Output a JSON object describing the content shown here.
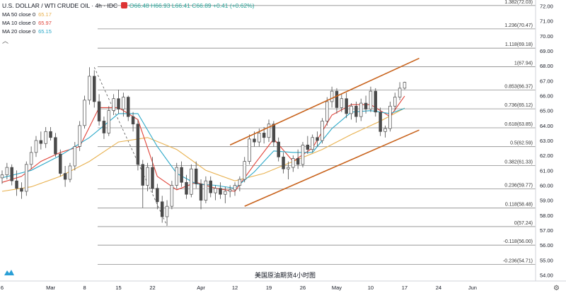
{
  "header": {
    "symbol": "U.S. DOLLAR / WTI CRUDE OIL · 4h · IDC",
    "ohlc": "O66.48 H66.93 L66.41 C66.89 +0.41 (+0.62%)",
    "ohlc_color": "#26a69a"
  },
  "indicators": [
    {
      "label": "MA 50 close 0",
      "value": "65.17",
      "color": "#e8b04d"
    },
    {
      "label": "MA 10 close 0",
      "value": "65.97",
      "color": "#e0443a"
    },
    {
      "label": "MA 20 close 0",
      "value": "65.15",
      "color": "#2aa8c8"
    }
  ],
  "caption": "美国原油期货4小时图",
  "icons": {
    "collapse": "chevron-up-icon",
    "logo": "tradingview-logo-icon",
    "settings": "gear-icon"
  },
  "colors": {
    "up": "#26a69a",
    "down": "#ef5350",
    "candle": "#4a4a4a",
    "channel": "#c8621b",
    "fib": "#8a8a8a",
    "ma50": "#e8b04d",
    "ma10": "#e0443a",
    "ma20": "#2aa8c8"
  },
  "chart_data": {
    "type": "candlestick",
    "instrument": "WTI crude oil (USD)",
    "timeframe": "4h",
    "y_axis": {
      "ylim": [
        53.6,
        72.4
      ],
      "ticks": [
        54,
        55,
        56,
        57,
        58,
        59,
        60,
        61,
        62,
        63,
        64,
        65,
        66,
        67,
        68,
        69,
        70,
        71,
        72
      ]
    },
    "x_axis": {
      "xlim": [
        0,
        110
      ],
      "ticks": [
        {
          "x": 0,
          "label": "6"
        },
        {
          "x": 10,
          "label": "Mar"
        },
        {
          "x": 17,
          "label": "8"
        },
        {
          "x": 24,
          "label": "15"
        },
        {
          "x": 31,
          "label": "22"
        },
        {
          "x": 41,
          "label": "Apr"
        },
        {
          "x": 48,
          "label": "12"
        },
        {
          "x": 55,
          "label": "19"
        },
        {
          "x": 62,
          "label": "26"
        },
        {
          "x": 69,
          "label": "May"
        },
        {
          "x": 76,
          "label": "10"
        },
        {
          "x": 83,
          "label": "17"
        },
        {
          "x": 90,
          "label": "24"
        },
        {
          "x": 97,
          "label": "Jun"
        }
      ]
    },
    "fib_levels": [
      {
        "ratio": "1.382",
        "price": 72.03,
        "label": "1.382(72.03)"
      },
      {
        "ratio": "1.236",
        "price": 70.47,
        "label": "1.236(70.47)"
      },
      {
        "ratio": "1.118",
        "price": 69.18,
        "label": "1.118(69.18)"
      },
      {
        "ratio": "1",
        "price": 67.94,
        "label": "1(67.94)"
      },
      {
        "ratio": "0.853",
        "price": 66.37,
        "label": "0.853(66.37)"
      },
      {
        "ratio": "0.736",
        "price": 65.12,
        "label": "0.736(65.12)"
      },
      {
        "ratio": "0.618",
        "price": 63.85,
        "label": "0.618(63.85)"
      },
      {
        "ratio": "0.5",
        "price": 62.59,
        "label": "0.5(62.59)"
      },
      {
        "ratio": "0.382",
        "price": 61.33,
        "label": "0.382(61.33)"
      },
      {
        "ratio": "0.236",
        "price": 59.77,
        "label": "0.236(59.77)"
      },
      {
        "ratio": "0.118",
        "price": 58.48,
        "label": "0.118(58.48)"
      },
      {
        "ratio": "0",
        "price": 57.24,
        "label": "0(57.24)"
      },
      {
        "ratio": "-0.118",
        "price": 56.0,
        "label": "-0.118(56.00)"
      },
      {
        "ratio": "-0.236",
        "price": 54.71,
        "label": "-0.236(54.71)"
      }
    ],
    "channel": {
      "upper": [
        [
          47,
          62.7
        ],
        [
          86,
          68.5
        ]
      ],
      "lower": [
        [
          50,
          58.6
        ],
        [
          86,
          63.7
        ]
      ]
    },
    "diagonal": [
      [
        19,
        67.9
      ],
      [
        34,
        57.3
      ]
    ],
    "candles": [
      [
        0,
        60.5,
        61.0,
        60.1,
        60.7
      ],
      [
        1,
        60.7,
        61.5,
        60.4,
        61.2
      ],
      [
        2,
        61.2,
        61.4,
        60.0,
        60.3
      ],
      [
        3,
        60.3,
        61.0,
        59.3,
        59.8
      ],
      [
        4,
        59.8,
        60.2,
        59.1,
        59.6
      ],
      [
        5,
        59.6,
        61.6,
        59.3,
        61.4
      ],
      [
        6,
        61.4,
        62.6,
        61.1,
        62.2
      ],
      [
        7,
        62.2,
        63.3,
        61.9,
        63.0
      ],
      [
        8,
        63.0,
        63.6,
        62.4,
        62.8
      ],
      [
        9,
        62.8,
        63.9,
        62.5,
        63.6
      ],
      [
        10,
        63.6,
        63.9,
        63.0,
        63.2
      ],
      [
        11,
        63.2,
        63.5,
        61.9,
        62.1
      ],
      [
        12,
        62.1,
        62.4,
        60.6,
        60.8
      ],
      [
        13,
        60.8,
        61.3,
        59.9,
        60.4
      ],
      [
        14,
        60.4,
        61.5,
        60.2,
        61.3
      ],
      [
        15,
        61.3,
        62.9,
        61.0,
        62.6
      ],
      [
        16,
        62.6,
        64.3,
        62.3,
        64.0
      ],
      [
        17,
        64.0,
        66.0,
        63.8,
        65.7
      ],
      [
        18,
        65.7,
        67.9,
        65.4,
        67.3
      ],
      [
        19,
        67.3,
        67.7,
        65.2,
        65.6
      ],
      [
        20,
        65.6,
        66.1,
        64.0,
        64.3
      ],
      [
        21,
        64.3,
        64.6,
        63.1,
        63.5
      ],
      [
        22,
        63.5,
        65.3,
        63.3,
        65.0
      ],
      [
        23,
        65.0,
        66.1,
        64.7,
        65.8
      ],
      [
        24,
        65.8,
        66.4,
        64.8,
        65.1
      ],
      [
        25,
        65.1,
        66.2,
        64.6,
        65.9
      ],
      [
        26,
        65.9,
        66.0,
        64.3,
        64.6
      ],
      [
        27,
        64.6,
        64.9,
        63.6,
        64.1
      ],
      [
        28,
        64.1,
        64.4,
        61.0,
        61.4
      ],
      [
        29,
        61.4,
        61.7,
        58.5,
        60.0
      ],
      [
        30,
        60.0,
        61.5,
        59.6,
        61.2
      ],
      [
        31,
        61.2,
        61.9,
        59.5,
        59.8
      ],
      [
        32,
        59.8,
        60.1,
        58.4,
        58.9
      ],
      [
        33,
        58.9,
        59.3,
        57.5,
        57.9
      ],
      [
        34,
        57.9,
        59.0,
        57.3,
        58.6
      ],
      [
        35,
        58.6,
        60.3,
        58.4,
        60.0
      ],
      [
        36,
        60.0,
        61.5,
        59.8,
        61.2
      ],
      [
        37,
        61.2,
        61.6,
        59.9,
        60.2
      ],
      [
        38,
        60.2,
        60.7,
        59.1,
        59.4
      ],
      [
        39,
        59.4,
        61.4,
        59.2,
        61.1
      ],
      [
        40,
        61.1,
        61.6,
        59.8,
        60.1
      ],
      [
        41,
        60.1,
        60.4,
        58.4,
        59.0
      ],
      [
        42,
        59.0,
        60.6,
        58.8,
        60.3
      ],
      [
        43,
        60.3,
        60.6,
        59.2,
        59.5
      ],
      [
        44,
        59.5,
        60.0,
        59.0,
        59.8
      ],
      [
        45,
        59.8,
        60.2,
        59.1,
        59.4
      ],
      [
        46,
        59.4,
        59.9,
        58.8,
        59.6
      ],
      [
        47,
        59.6,
        60.0,
        59.2,
        59.7
      ],
      [
        48,
        59.7,
        60.2,
        59.3,
        60.0
      ],
      [
        49,
        60.0,
        60.6,
        59.6,
        60.4
      ],
      [
        50,
        60.4,
        61.9,
        60.2,
        61.6
      ],
      [
        51,
        61.6,
        63.4,
        61.4,
        63.1
      ],
      [
        52,
        63.1,
        63.6,
        62.6,
        62.9
      ],
      [
        53,
        62.9,
        63.8,
        62.6,
        63.5
      ],
      [
        54,
        63.5,
        63.9,
        62.8,
        63.2
      ],
      [
        55,
        63.2,
        64.4,
        62.9,
        64.1
      ],
      [
        56,
        64.1,
        64.3,
        62.6,
        62.9
      ],
      [
        57,
        62.9,
        63.2,
        61.6,
        61.9
      ],
      [
        58,
        61.9,
        62.2,
        60.8,
        61.1
      ],
      [
        59,
        61.1,
        61.6,
        60.4,
        61.2
      ],
      [
        60,
        61.2,
        62.0,
        60.9,
        61.8
      ],
      [
        61,
        61.8,
        62.4,
        61.1,
        61.4
      ],
      [
        62,
        61.4,
        62.9,
        61.2,
        62.7
      ],
      [
        63,
        62.7,
        63.3,
        62.1,
        62.4
      ],
      [
        64,
        62.4,
        63.4,
        62.2,
        63.2
      ],
      [
        65,
        63.2,
        63.6,
        62.6,
        63.0
      ],
      [
        66,
        63.0,
        64.5,
        62.8,
        64.3
      ],
      [
        67,
        64.3,
        65.9,
        64.0,
        65.6
      ],
      [
        68,
        65.6,
        66.6,
        65.2,
        66.3
      ],
      [
        69,
        66.3,
        66.5,
        64.8,
        65.2
      ],
      [
        70,
        65.2,
        66.1,
        64.9,
        65.8
      ],
      [
        71,
        65.8,
        66.2,
        64.5,
        64.8
      ],
      [
        72,
        64.8,
        65.5,
        64.4,
        65.3
      ],
      [
        73,
        65.3,
        65.6,
        64.2,
        64.6
      ],
      [
        74,
        64.6,
        65.8,
        64.3,
        65.5
      ],
      [
        75,
        65.5,
        66.0,
        64.8,
        65.1
      ],
      [
        76,
        65.1,
        66.6,
        64.9,
        66.3
      ],
      [
        77,
        66.3,
        66.5,
        64.6,
        64.9
      ],
      [
        78,
        64.9,
        65.2,
        63.3,
        63.6
      ],
      [
        79,
        63.6,
        64.0,
        63.2,
        63.8
      ],
      [
        80,
        63.8,
        65.6,
        63.6,
        65.3
      ],
      [
        81,
        65.3,
        66.2,
        65.0,
        65.9
      ],
      [
        82,
        65.9,
        66.9,
        65.7,
        66.5
      ],
      [
        83,
        66.5,
        66.93,
        66.41,
        66.89
      ]
    ],
    "moving_averages": [
      {
        "name": "MA 50 close 0",
        "values": [
          [
            0,
            59.6
          ],
          [
            6,
            59.9
          ],
          [
            12,
            60.6
          ],
          [
            18,
            61.6
          ],
          [
            24,
            62.9
          ],
          [
            30,
            63.2
          ],
          [
            36,
            62.4
          ],
          [
            42,
            61.0
          ],
          [
            48,
            60.3
          ],
          [
            54,
            60.8
          ],
          [
            60,
            61.6
          ],
          [
            66,
            62.4
          ],
          [
            72,
            63.4
          ],
          [
            78,
            64.3
          ],
          [
            83,
            65.17
          ]
        ]
      },
      {
        "name": "MA 10 close 0",
        "values": [
          [
            0,
            60.2
          ],
          [
            4,
            60.6
          ],
          [
            8,
            61.6
          ],
          [
            12,
            62.2
          ],
          [
            16,
            62.6
          ],
          [
            20,
            65.2
          ],
          [
            24,
            65.2
          ],
          [
            28,
            64.4
          ],
          [
            32,
            60.6
          ],
          [
            36,
            59.7
          ],
          [
            40,
            60.2
          ],
          [
            44,
            59.8
          ],
          [
            48,
            59.6
          ],
          [
            52,
            61.4
          ],
          [
            56,
            63.1
          ],
          [
            60,
            61.6
          ],
          [
            64,
            62.5
          ],
          [
            68,
            64.7
          ],
          [
            72,
            65.4
          ],
          [
            76,
            65.4
          ],
          [
            80,
            64.6
          ],
          [
            83,
            65.97
          ]
        ]
      },
      {
        "name": "MA 20 close 0",
        "values": [
          [
            0,
            60.5
          ],
          [
            6,
            61.0
          ],
          [
            12,
            62.0
          ],
          [
            18,
            63.2
          ],
          [
            24,
            64.8
          ],
          [
            28,
            64.8
          ],
          [
            32,
            62.6
          ],
          [
            36,
            60.8
          ],
          [
            40,
            60.1
          ],
          [
            44,
            60.0
          ],
          [
            48,
            59.8
          ],
          [
            52,
            60.9
          ],
          [
            56,
            62.3
          ],
          [
            60,
            62.2
          ],
          [
            64,
            62.2
          ],
          [
            68,
            63.8
          ],
          [
            72,
            64.9
          ],
          [
            76,
            65.0
          ],
          [
            80,
            64.8
          ],
          [
            83,
            65.15
          ]
        ]
      }
    ]
  }
}
